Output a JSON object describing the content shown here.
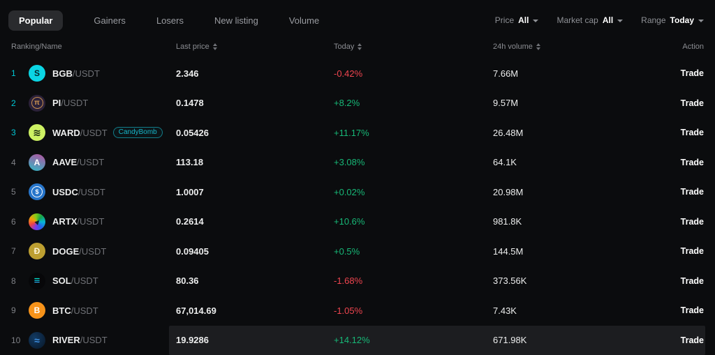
{
  "tabs": [
    {
      "label": "Popular",
      "active": true
    },
    {
      "label": "Gainers",
      "active": false
    },
    {
      "label": "Losers",
      "active": false
    },
    {
      "label": "New listing",
      "active": false
    },
    {
      "label": "Volume",
      "active": false
    }
  ],
  "filters": [
    {
      "label": "Price",
      "value": "All"
    },
    {
      "label": "Market cap",
      "value": "All"
    },
    {
      "label": "Range",
      "value": "Today"
    }
  ],
  "table": {
    "headers": {
      "ranking": "Ranking/Name",
      "price": "Last price",
      "today": "Today",
      "volume": "24h volume",
      "action": "Action"
    },
    "rows": [
      {
        "rank": "1",
        "base": "BGB",
        "quote": "/USDT",
        "price": "2.346",
        "change": "-0.42%",
        "volume": "7.66M",
        "action": "Trade",
        "icon_glyph": "S",
        "icon_style": "background:#0bd5e4;color:#04272c"
      },
      {
        "rank": "2",
        "base": "PI",
        "quote": "/USDT",
        "price": "0.1478",
        "change": "+8.2%",
        "volume": "9.57M",
        "action": "Trade",
        "icon_glyph": "π",
        "icon_style": "background:#2b2139;color:#d69a52",
        "icon_glyph_style": "border:1px solid #c98f4e;border-radius:50%;width:15px;height:15px;display:flex;align-items:center;justify-content:center;font-size:10px"
      },
      {
        "rank": "3",
        "base": "WARD",
        "quote": "/USDT",
        "badge": "CandyBomb",
        "price": "0.05426",
        "change": "+11.17%",
        "volume": "26.48M",
        "action": "Trade",
        "icon_glyph": "≋",
        "icon_style": "background:#cdf163;color:#16250f",
        "icon_glyph_style": "font-size:14px"
      },
      {
        "rank": "4",
        "base": "AAVE",
        "quote": "/USDT",
        "price": "113.18",
        "change": "+3.08%",
        "volume": "64.1K",
        "action": "Trade",
        "icon_glyph": "A",
        "icon_style": "background:linear-gradient(200deg,#b6509e,#2ebac6);color:#ffffff"
      },
      {
        "rank": "5",
        "base": "USDC",
        "quote": "/USDT",
        "price": "1.0007",
        "change": "+0.02%",
        "volume": "20.98M",
        "action": "Trade",
        "icon_glyph": "$",
        "icon_style": "background:#2775ca;color:#ffffff",
        "icon_glyph_style": "border:1px solid #ffffff;border-radius:50%;width:14px;height:14px;display:flex;align-items:center;justify-content:center;font-size:9px"
      },
      {
        "rank": "6",
        "base": "ARTX",
        "quote": "/USDT",
        "price": "0.2614",
        "change": "+10.6%",
        "volume": "981.8K",
        "action": "Trade",
        "icon_glyph": "▸",
        "icon_style": "background:conic-gradient(from 40deg,#16a34a,#06b6d4,#2563eb,#7c3aed,#ef4444,#f59e0b,#84cc16,#16a34a);color:#10202c",
        "icon_glyph_style": "transform:rotate(-45deg);font-size:13px"
      },
      {
        "rank": "7",
        "base": "DOGE",
        "quote": "/USDT",
        "price": "0.09405",
        "change": "+0.5%",
        "volume": "144.5M",
        "action": "Trade",
        "icon_glyph": "Ð",
        "icon_style": "background:#bd9f31;color:#fdf4d7"
      },
      {
        "rank": "8",
        "base": "SOL",
        "quote": "/USDT",
        "price": "80.36",
        "change": "-1.68%",
        "volume": "373.56K",
        "action": "Trade",
        "icon_glyph": "≡",
        "icon_style": "background:#070709;color:#14f195",
        "icon_glyph_style": "background:linear-gradient(180deg,#00ffa3,#03e1ff,#9945ff);-webkit-background-clip:text;background-clip:text;color:transparent;font-size:15px;font-weight:800"
      },
      {
        "rank": "9",
        "base": "BTC",
        "quote": "/USDT",
        "price": "67,014.69",
        "change": "-1.05%",
        "volume": "7.43K",
        "action": "Trade",
        "icon_glyph": "B",
        "icon_style": "background:#f7931a;color:#ffffff"
      },
      {
        "rank": "10",
        "base": "RIVER",
        "quote": "/USDT",
        "price": "19.9286",
        "change": "+14.12%",
        "volume": "671.98K",
        "action": "Trade",
        "icon_glyph": "≈",
        "icon_style": "background:radial-gradient(circle at 35% 35%,#123a63,#081626);color:#3f8fe0",
        "icon_glyph_style": "font-weight:800;font-size:14px"
      }
    ]
  },
  "colors": {
    "up": "#17b877",
    "down": "#ef454f",
    "accent": "#00c9d6",
    "tab_active_bg": "#2a2b2e",
    "page_bg": "#0b0c0e"
  }
}
